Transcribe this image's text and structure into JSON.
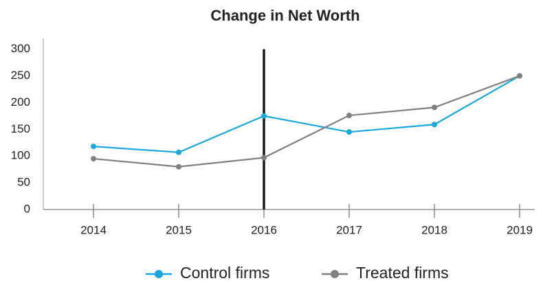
{
  "chart_data": {
    "type": "line",
    "title": "Change in Net Worth",
    "categories": [
      "2014",
      "2015",
      "2016",
      "2017",
      "2018",
      "2019"
    ],
    "series": [
      {
        "name": "Control firms",
        "color": "#1aa7e0",
        "values": [
          118,
          107,
          175,
          145,
          159,
          250
        ]
      },
      {
        "name": "Treated firms",
        "color": "#808080",
        "values": [
          95,
          80,
          97,
          176,
          191,
          250
        ]
      }
    ],
    "ylim": [
      0,
      320
    ],
    "yticks": [
      0,
      50,
      100,
      150,
      200,
      250,
      300
    ],
    "vline": {
      "x": "2016",
      "from": 0,
      "to": 300,
      "color": "#1a1a1a"
    },
    "legend": "bottom",
    "grid": false
  }
}
